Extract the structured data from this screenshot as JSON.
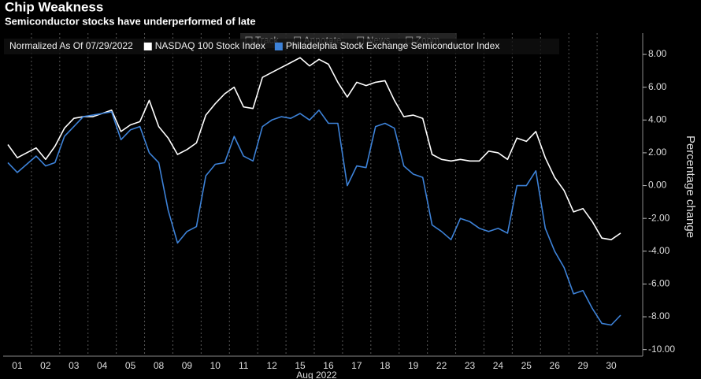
{
  "chart_data": {
    "type": "line",
    "title": "Chip Weakness",
    "subtitle": "Semiconductor stocks have underperformed of late",
    "legend_title": "Normalized As Of 07/29/2022",
    "toolbar": [
      "Track",
      "Annotate",
      "News",
      "Zoom"
    ],
    "xlabel": "Aug 2022",
    "ylabel": "Percentage change",
    "categories": [
      null,
      "01",
      null,
      null,
      "02",
      null,
      null,
      "03",
      null,
      null,
      "04",
      null,
      null,
      "05",
      null,
      null,
      "08",
      null,
      null,
      "09",
      null,
      null,
      "10",
      null,
      null,
      "11",
      null,
      null,
      "12",
      null,
      null,
      "15",
      null,
      null,
      "16",
      null,
      null,
      "17",
      null,
      null,
      "18",
      null,
      null,
      "19",
      null,
      null,
      "22",
      null,
      null,
      "23",
      null,
      null,
      "24",
      null,
      null,
      "25",
      null,
      null,
      "26",
      null,
      null,
      "29",
      null,
      null,
      "30",
      null
    ],
    "series": [
      {
        "name": "NASDAQ 100 Stock Index",
        "color": "#ffffff",
        "values": [
          2.5,
          1.7,
          2.0,
          2.3,
          1.6,
          2.4,
          3.5,
          4.1,
          4.2,
          4.2,
          4.4,
          4.6,
          3.3,
          3.7,
          3.9,
          5.2,
          3.6,
          2.9,
          1.9,
          2.2,
          2.6,
          4.3,
          5.0,
          5.6,
          6.0,
          4.8,
          4.7,
          6.6,
          6.9,
          7.2,
          7.5,
          7.8,
          7.3,
          7.7,
          7.4,
          6.3,
          5.4,
          6.3,
          6.1,
          6.3,
          6.4,
          5.2,
          4.2,
          4.3,
          4.1,
          1.9,
          1.6,
          1.5,
          1.6,
          1.5,
          1.5,
          2.1,
          2.0,
          1.6,
          2.9,
          2.7,
          3.3,
          1.7,
          0.5,
          -0.3,
          -1.6,
          -1.4,
          -2.2,
          -3.2,
          -3.3,
          -2.9
        ]
      },
      {
        "name": "Philadelphia Stock Exchange Semiconductor Index",
        "color": "#3d82d8",
        "values": [
          1.4,
          0.8,
          1.3,
          1.8,
          1.2,
          1.4,
          3.0,
          3.6,
          4.2,
          4.3,
          4.4,
          4.5,
          2.8,
          3.4,
          3.6,
          2.0,
          1.4,
          -1.5,
          -3.5,
          -2.8,
          -2.5,
          0.6,
          1.3,
          1.4,
          3.0,
          1.8,
          1.5,
          3.6,
          4.0,
          4.2,
          4.1,
          4.4,
          4.0,
          4.6,
          3.8,
          3.8,
          0.0,
          1.2,
          1.1,
          3.6,
          3.8,
          3.5,
          1.2,
          0.7,
          0.5,
          -2.4,
          -2.8,
          -3.3,
          -2.0,
          -2.2,
          -2.6,
          -2.8,
          -2.6,
          -2.9,
          0.0,
          0.0,
          0.9,
          -2.6,
          -4.0,
          -5.0,
          -6.6,
          -6.4,
          -7.5,
          -8.4,
          -8.5,
          -7.9
        ]
      }
    ],
    "ylim": [
      -10.4,
      9.3
    ],
    "yticks": [
      {
        "value": 8,
        "label": "8.00"
      },
      {
        "value": 6,
        "label": "6.00"
      },
      {
        "value": 4,
        "label": "4.00"
      },
      {
        "value": 2,
        "label": "2.00"
      },
      {
        "value": 0,
        "label": "0.00"
      },
      {
        "value": -2,
        "label": "-2.00"
      },
      {
        "value": -4,
        "label": "-4.00"
      },
      {
        "value": -6,
        "label": "-6.00"
      },
      {
        "value": -8,
        "label": "-8.00"
      },
      {
        "value": -10,
        "label": "-10.00"
      }
    ]
  }
}
